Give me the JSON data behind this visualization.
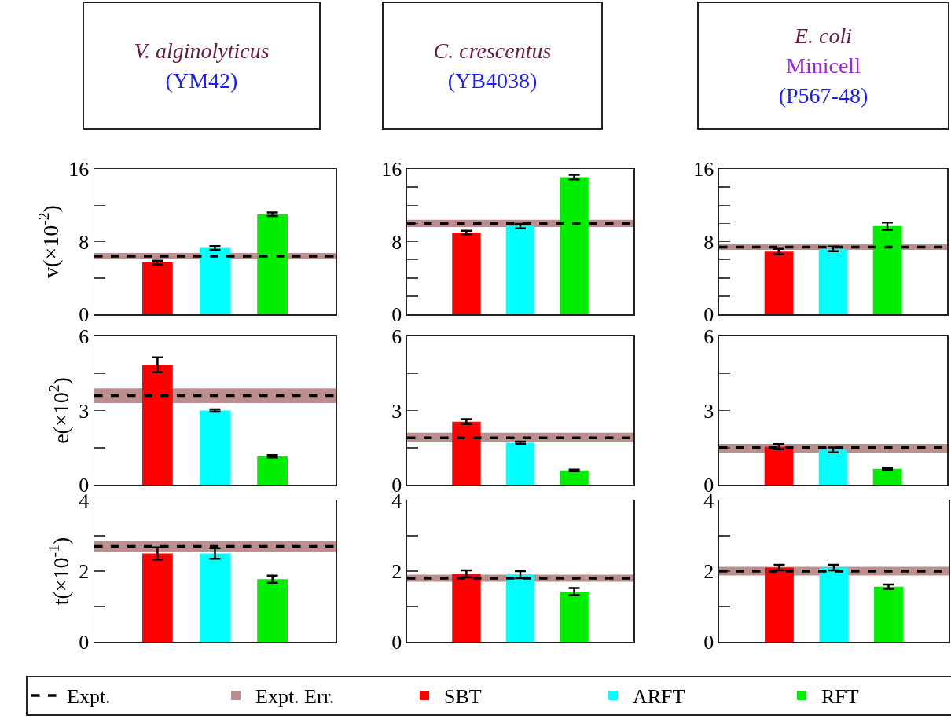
{
  "chart_data": [
    {
      "type": "bar",
      "title": "V. alginolyticus",
      "subtitle": "(YM42)",
      "ylabel": "v(×10$^{-2}$)",
      "categories": [
        null,
        null,
        null
      ],
      "tick_labels": "y",
      "ylim": [
        0,
        16
      ],
      "yticks": [
        0,
        {
          "value": 4,
          "label": null
        },
        8,
        {
          "value": 12,
          "label": null
        },
        16
      ],
      "series": [
        {
          "color": "#ff0000",
          "values": [
            5.7,
            null,
            null
          ],
          "errors": [
            0.2,
            null,
            null
          ]
        },
        {
          "color": "#00ffff",
          "values": [
            null,
            7.3,
            null
          ],
          "errors": [
            null,
            0.2,
            null
          ]
        },
        {
          "color": "#00ee00",
          "values": [
            null,
            null,
            11.0
          ],
          "errors": [
            null,
            null,
            0.2
          ]
        }
      ],
      "bands": [
        {
          "axis": "y",
          "from": 6.05,
          "to": 6.75,
          "color": "#bc8f8f"
        }
      ],
      "ref_lines": [
        {
          "axis": "y",
          "value": 6.4,
          "color": "#000000",
          "line_style": "dashed"
        }
      ]
    },
    {
      "type": "bar",
      "title": "C. crescentus",
      "subtitle": "(YB4038)",
      "categories": [
        null,
        null,
        null
      ],
      "tick_labels": "y",
      "ylim": [
        0,
        16
      ],
      "yticks": [
        0,
        {
          "value": 2,
          "label": null
        },
        {
          "value": 4,
          "label": null
        },
        {
          "value": 6,
          "label": null
        },
        8,
        {
          "value": 10,
          "label": null
        },
        {
          "value": 12,
          "label": null
        },
        {
          "value": 14,
          "label": null
        },
        16
      ],
      "series": [
        {
          "color": "#ff0000",
          "values": [
            9.0,
            null,
            null
          ],
          "errors": [
            0.2,
            null,
            null
          ]
        },
        {
          "color": "#00ffff",
          "values": [
            null,
            9.7,
            null
          ],
          "errors": [
            null,
            0.25,
            null
          ]
        },
        {
          "color": "#00ee00",
          "values": [
            null,
            null,
            15.1
          ],
          "errors": [
            null,
            null,
            0.25
          ]
        }
      ],
      "bands": [
        {
          "axis": "y",
          "from": 9.6,
          "to": 10.4,
          "color": "#bc8f8f"
        }
      ],
      "ref_lines": [
        {
          "axis": "y",
          "value": 10.0,
          "color": "#000000",
          "line_style": "dashed"
        }
      ]
    },
    {
      "type": "bar",
      "title": "E. coli",
      "subtitle": "Minicell\n(P567-48)",
      "categories": [
        null,
        null,
        null
      ],
      "tick_labels": "y",
      "ylim": [
        0,
        16
      ],
      "yticks": [
        0,
        {
          "value": 2,
          "label": null
        },
        {
          "value": 4,
          "label": null
        },
        {
          "value": 6,
          "label": null
        },
        8,
        {
          "value": 10,
          "label": null
        },
        {
          "value": 12,
          "label": null
        },
        {
          "value": 14,
          "label": null
        },
        16
      ],
      "series": [
        {
          "color": "#ff0000",
          "values": [
            6.9,
            null,
            null
          ],
          "errors": [
            0.3,
            null,
            null
          ]
        },
        {
          "color": "#00ffff",
          "values": [
            null,
            7.2,
            null
          ],
          "errors": [
            null,
            0.25,
            null
          ]
        },
        {
          "color": "#00ee00",
          "values": [
            null,
            null,
            9.7
          ],
          "errors": [
            null,
            null,
            0.4
          ]
        }
      ],
      "bands": [
        {
          "axis": "y",
          "from": 7.1,
          "to": 7.7,
          "color": "#bc8f8f"
        }
      ],
      "ref_lines": [
        {
          "axis": "y",
          "value": 7.4,
          "color": "#000000",
          "line_style": "dashed"
        }
      ]
    },
    {
      "type": "bar",
      "ylabel": "e(×10$^{2}$)",
      "categories": [
        null,
        null,
        null
      ],
      "tick_labels": "y",
      "ylim": [
        0,
        6
      ],
      "yticks": [
        0,
        {
          "value": 1.5,
          "label": null
        },
        3,
        {
          "value": 4.5,
          "label": null
        },
        6
      ],
      "series": [
        {
          "color": "#ff0000",
          "values": [
            4.85,
            null,
            null
          ],
          "errors": [
            0.3,
            null,
            null
          ]
        },
        {
          "color": "#00ffff",
          "values": [
            null,
            3.0,
            null
          ],
          "errors": [
            null,
            0.05,
            null
          ]
        },
        {
          "color": "#00ee00",
          "values": [
            null,
            null,
            1.15
          ],
          "errors": [
            null,
            null,
            0.05
          ]
        }
      ],
      "bands": [
        {
          "axis": "y",
          "from": 3.3,
          "to": 3.9,
          "color": "#bc8f8f"
        }
      ],
      "ref_lines": [
        {
          "axis": "y",
          "value": 3.6,
          "color": "#000000",
          "line_style": "dashed"
        }
      ]
    },
    {
      "type": "bar",
      "categories": [
        null,
        null,
        null
      ],
      "tick_labels": "y",
      "ylim": [
        0,
        6
      ],
      "yticks": [
        0,
        {
          "value": 1.5,
          "label": null
        },
        3,
        {
          "value": 4.5,
          "label": null
        },
        6
      ],
      "series": [
        {
          "color": "#ff0000",
          "values": [
            2.55,
            null,
            null
          ],
          "errors": [
            0.1,
            null,
            null
          ]
        },
        {
          "color": "#00ffff",
          "values": [
            null,
            1.7,
            null
          ],
          "errors": [
            null,
            0.05,
            null
          ]
        },
        {
          "color": "#00ee00",
          "values": [
            null,
            null,
            0.58
          ],
          "errors": [
            null,
            null,
            0.03
          ]
        }
      ],
      "bands": [
        {
          "axis": "y",
          "from": 1.75,
          "to": 2.1,
          "color": "#bc8f8f"
        }
      ],
      "ref_lines": [
        {
          "axis": "y",
          "value": 1.9,
          "color": "#000000",
          "line_style": "dashed"
        }
      ]
    },
    {
      "type": "bar",
      "categories": [
        null,
        null,
        null
      ],
      "tick_labels": "y",
      "ylim": [
        0,
        6
      ],
      "yticks": [
        0,
        {
          "value": 1.5,
          "label": null
        },
        3,
        {
          "value": 4.5,
          "label": null
        },
        6
      ],
      "series": [
        {
          "color": "#ff0000",
          "values": [
            1.54,
            null,
            null
          ],
          "errors": [
            0.1,
            null,
            null
          ]
        },
        {
          "color": "#00ffff",
          "values": [
            null,
            1.41,
            null
          ],
          "errors": [
            null,
            0.1,
            null
          ]
        },
        {
          "color": "#00ee00",
          "values": [
            null,
            null,
            0.64
          ],
          "errors": [
            null,
            null,
            0.03
          ]
        }
      ],
      "bands": [
        {
          "axis": "y",
          "from": 1.3,
          "to": 1.65,
          "color": "#bc8f8f"
        }
      ],
      "ref_lines": [
        {
          "axis": "y",
          "value": 1.5,
          "color": "#000000",
          "line_style": "dashed"
        }
      ]
    },
    {
      "type": "bar",
      "ylabel": "t(×10$^{-1}$)",
      "categories": [
        null,
        null,
        null
      ],
      "tick_labels": "y",
      "ylim": [
        0,
        4
      ],
      "yticks": [
        0,
        {
          "value": 1,
          "label": null
        },
        2,
        {
          "value": 3,
          "label": null
        },
        4
      ],
      "series": [
        {
          "color": "#ff0000",
          "values": [
            2.5,
            null,
            null
          ],
          "errors": [
            0.17,
            null,
            null
          ]
        },
        {
          "color": "#00ffff",
          "values": [
            null,
            2.5,
            null
          ],
          "errors": [
            null,
            0.15,
            null
          ]
        },
        {
          "color": "#00ee00",
          "values": [
            null,
            null,
            1.77
          ],
          "errors": [
            null,
            null,
            0.1
          ]
        }
      ],
      "bands": [
        {
          "axis": "y",
          "from": 2.55,
          "to": 2.85,
          "color": "#bc8f8f"
        }
      ],
      "ref_lines": [
        {
          "axis": "y",
          "value": 2.7,
          "color": "#000000",
          "line_style": "dashed"
        }
      ]
    },
    {
      "type": "bar",
      "categories": [
        null,
        null,
        null
      ],
      "tick_labels": "y",
      "ylim": [
        0,
        4
      ],
      "yticks": [
        0,
        {
          "value": 1,
          "label": null
        },
        2,
        {
          "value": 3,
          "label": null
        },
        4
      ],
      "series": [
        {
          "color": "#ff0000",
          "values": [
            1.92,
            null,
            null
          ],
          "errors": [
            0.1,
            null,
            null
          ]
        },
        {
          "color": "#00ffff",
          "values": [
            null,
            1.9,
            null
          ],
          "errors": [
            null,
            0.1,
            null
          ]
        },
        {
          "color": "#00ee00",
          "values": [
            null,
            null,
            1.42
          ],
          "errors": [
            null,
            null,
            0.1
          ]
        }
      ],
      "bands": [
        {
          "axis": "y",
          "from": 1.7,
          "to": 1.9,
          "color": "#bc8f8f"
        }
      ],
      "ref_lines": [
        {
          "axis": "y",
          "value": 1.8,
          "color": "#000000",
          "line_style": "dashed"
        }
      ]
    },
    {
      "type": "bar",
      "categories": [
        null,
        null,
        null
      ],
      "tick_labels": "y",
      "ylim": [
        0,
        4
      ],
      "yticks": [
        0,
        {
          "value": 1,
          "label": null
        },
        2,
        {
          "value": 3,
          "label": null
        },
        4
      ],
      "legend": "bottom",
      "series": [
        {
          "name": "SBT",
          "color": "#ff0000",
          "values": [
            2.1,
            null,
            null
          ],
          "errors": [
            0.08,
            null,
            null
          ]
        },
        {
          "name": "ARFT",
          "color": "#00ffff",
          "values": [
            null,
            2.1,
            null
          ],
          "errors": [
            null,
            0.08,
            null
          ]
        },
        {
          "name": "RFT",
          "color": "#00ee00",
          "values": [
            null,
            null,
            1.56
          ],
          "errors": [
            null,
            null,
            0.06
          ]
        }
      ],
      "bands": [
        {
          "axis": "y",
          "from": 1.88,
          "to": 2.12,
          "label": "Expt. Err.",
          "color": "#bc8f8f"
        }
      ],
      "ref_lines": [
        {
          "axis": "y",
          "value": 2.0,
          "label": "Expt.",
          "color": "#000000",
          "line_style": "dashed"
        }
      ]
    }
  ]
}
